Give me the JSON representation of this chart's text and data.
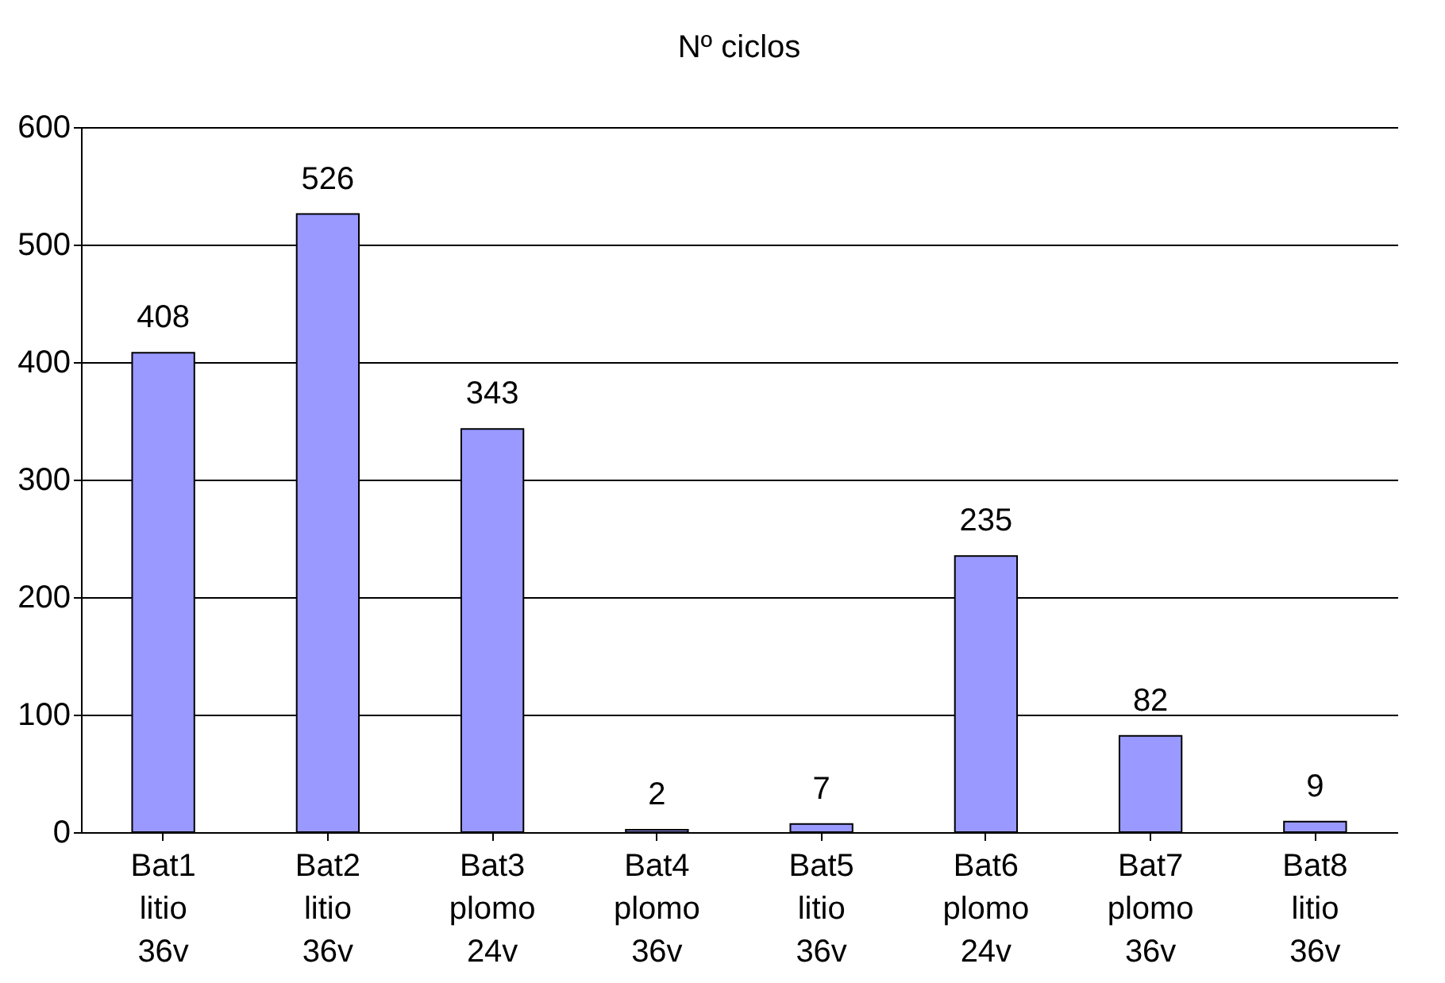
{
  "chart_data": {
    "type": "bar",
    "title": "Nº ciclos",
    "categories": [
      "Bat1 litio 36v",
      "Bat2 litio 36v",
      "Bat3 plomo 24v",
      "Bat4 plomo 36v",
      "Bat5 litio 36v",
      "Bat6 plomo 24v",
      "Bat7 plomo 36v",
      "Bat8 litio 36v"
    ],
    "values": [
      408,
      526,
      343,
      2,
      7,
      235,
      82,
      9
    ],
    "color": "#9999ff",
    "ylim": [
      0,
      600
    ],
    "yticks": [
      0,
      100,
      200,
      300,
      400,
      500,
      600
    ],
    "grid": "y",
    "data_labels": true
  }
}
